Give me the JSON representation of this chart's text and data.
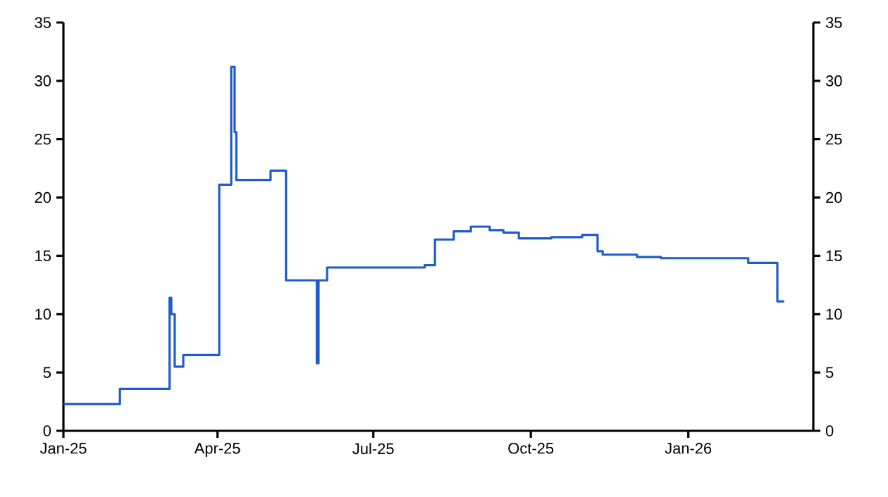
{
  "chart_data": {
    "type": "step",
    "x": [
      "2025-01-01",
      "2025-02-03",
      "2025-03-04",
      "2025-03-05",
      "2025-03-07",
      "2025-03-12",
      "2025-04-02",
      "2025-04-09",
      "2025-04-11",
      "2025-04-12",
      "2025-05-02",
      "2025-05-11",
      "2025-05-29",
      "2025-05-30",
      "2025-06-04",
      "2025-07-31",
      "2025-08-06",
      "2025-08-17",
      "2025-08-27",
      "2025-09-07",
      "2025-09-15",
      "2025-09-24",
      "2025-10-13",
      "2025-10-31",
      "2025-11-09",
      "2025-11-12",
      "2025-12-02",
      "2025-12-16",
      "2026-02-05",
      "2026-02-22",
      "2026-02-26"
    ],
    "series": [
      {
        "color": "#1f5bcc",
        "values": [
          2.3,
          3.6,
          11.4,
          10.0,
          5.5,
          6.5,
          21.1,
          31.2,
          25.6,
          21.5,
          22.3,
          12.9,
          5.8,
          12.9,
          14.0,
          14.2,
          16.4,
          17.1,
          17.5,
          17.2,
          17.0,
          16.5,
          16.6,
          16.8,
          15.4,
          15.1,
          14.9,
          14.8,
          14.4,
          11.1,
          11.1
        ]
      }
    ],
    "xlim": [
      "2025-01-01",
      "2026-03-15"
    ],
    "xticks": [
      {
        "value": "2025-01-01",
        "label": "Jan-25"
      },
      {
        "value": "2025-04-01",
        "label": "Apr-25"
      },
      {
        "value": "2025-07-01",
        "label": "Jul-25"
      },
      {
        "value": "2025-10-01",
        "label": "Oct-25"
      },
      {
        "value": "2026-01-01",
        "label": "Jan-26"
      }
    ],
    "ylim": [
      0,
      35
    ],
    "yticks": [
      0,
      5,
      10,
      15,
      20,
      25,
      30,
      35
    ],
    "y2lim": [
      0,
      35
    ],
    "y2ticks": [
      0,
      5,
      10,
      15,
      20,
      25,
      30,
      35
    ],
    "grid": false,
    "legend": false,
    "marker": "none",
    "line_style": "solid"
  }
}
